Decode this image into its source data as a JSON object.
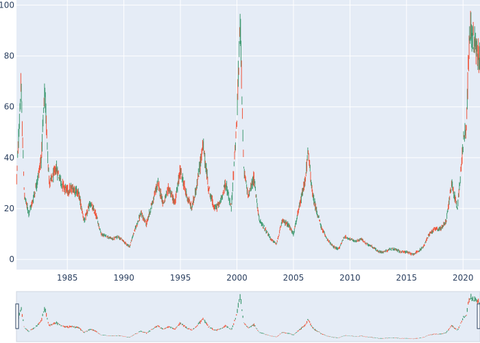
{
  "chart_data": {
    "type": "candlestick",
    "title": "",
    "xlabel": "",
    "ylabel": "",
    "xlim": [
      1980.5,
      2021.5
    ],
    "ylim": [
      -4,
      102
    ],
    "x_ticks": [
      1985,
      1990,
      1995,
      2000,
      2005,
      2010,
      2015,
      2020
    ],
    "x_tick_labels": [
      "1985",
      "1990",
      "1995",
      "2000",
      "2005",
      "2010",
      "2015",
      "2020"
    ],
    "y_ticks": [
      0,
      20,
      40,
      60,
      80,
      100
    ],
    "y_tick_labels": [
      "0",
      "20",
      "40",
      "60",
      "80",
      "100"
    ],
    "grid": true,
    "rangeslider": true,
    "colors": {
      "increasing": "#3d9970",
      "decreasing": "#ef553b",
      "plot_bg": "#e5ecf6",
      "grid": "#ffffff"
    },
    "series": [
      {
        "x": [
          1980.5,
          1980.9,
          1981.2,
          1981.6,
          1982.0,
          1982.3,
          1982.7,
          1983.0,
          1983.4,
          1983.7,
          1984.0,
          1984.5,
          1985.0,
          1985.5,
          1986.0,
          1986.5,
          1987.0,
          1987.5,
          1988.0,
          1988.5,
          1989.0,
          1989.5,
          1990.0,
          1990.5,
          1991.0,
          1991.5,
          1992.0,
          1992.5,
          1993.0,
          1993.5,
          1994.0,
          1994.5,
          1995.0,
          1995.5,
          1996.0,
          1996.5,
          1997.0,
          1997.5,
          1998.0,
          1998.5,
          1999.0,
          1999.5,
          2000.0,
          2000.3,
          2000.6,
          2001.0,
          2001.5,
          2002.0,
          2002.5,
          2003.0,
          2003.5,
          2004.0,
          2004.5,
          2005.0,
          2005.5,
          2006.0,
          2006.3,
          2006.7,
          2007.0,
          2007.5,
          2008.0,
          2008.5,
          2009.0,
          2009.5,
          2010.0,
          2010.5,
          2011.0,
          2011.5,
          2012.0,
          2012.5,
          2013.0,
          2013.5,
          2014.0,
          2014.5,
          2015.0,
          2015.5,
          2016.0,
          2016.5,
          2017.0,
          2017.5,
          2018.0,
          2018.5,
          2019.0,
          2019.5,
          2020.0,
          2020.3,
          2020.6,
          2021.0,
          2021.4
        ],
        "y": [
          30,
          68,
          25,
          18,
          24,
          30,
          40,
          66,
          30,
          32,
          36,
          30,
          27,
          28,
          26,
          15,
          22,
          18,
          10,
          9,
          8,
          9,
          7,
          5,
          12,
          18,
          14,
          22,
          30,
          22,
          28,
          22,
          35,
          26,
          20,
          30,
          45,
          28,
          20,
          22,
          30,
          20,
          55,
          95,
          35,
          25,
          32,
          15,
          12,
          8,
          6,
          15,
          14,
          10,
          20,
          30,
          42,
          25,
          20,
          12,
          8,
          5,
          4,
          9,
          8,
          7,
          8,
          6,
          5,
          3,
          3,
          4,
          4,
          3,
          3,
          2,
          3,
          5,
          10,
          12,
          12,
          15,
          30,
          20,
          45,
          55,
          90,
          85,
          80
        ]
      }
    ]
  }
}
